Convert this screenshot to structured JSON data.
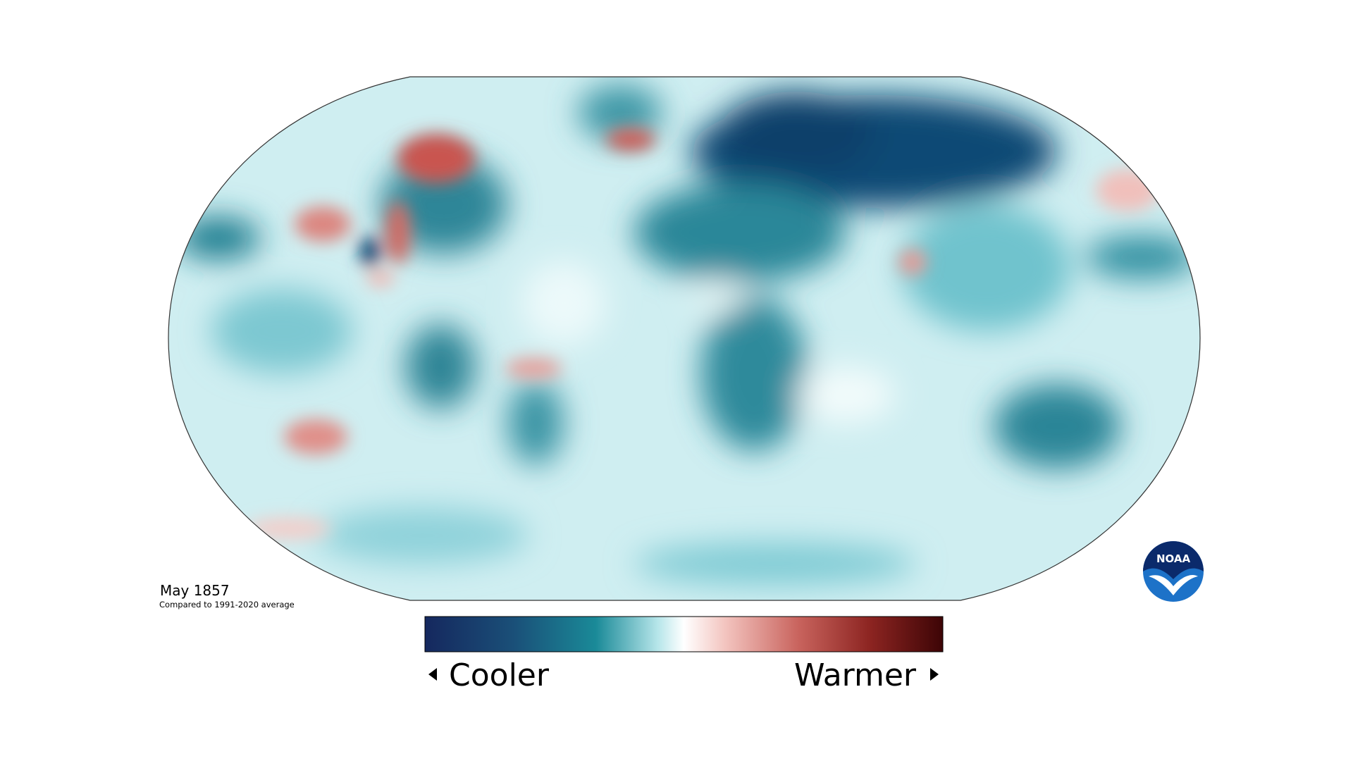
{
  "map": {
    "caption": {
      "date": "May 1857",
      "note": "Compared to 1991-2020 average"
    },
    "legend": {
      "low": "Cooler",
      "high": "Warmer"
    },
    "logo": "NOAA"
  }
}
